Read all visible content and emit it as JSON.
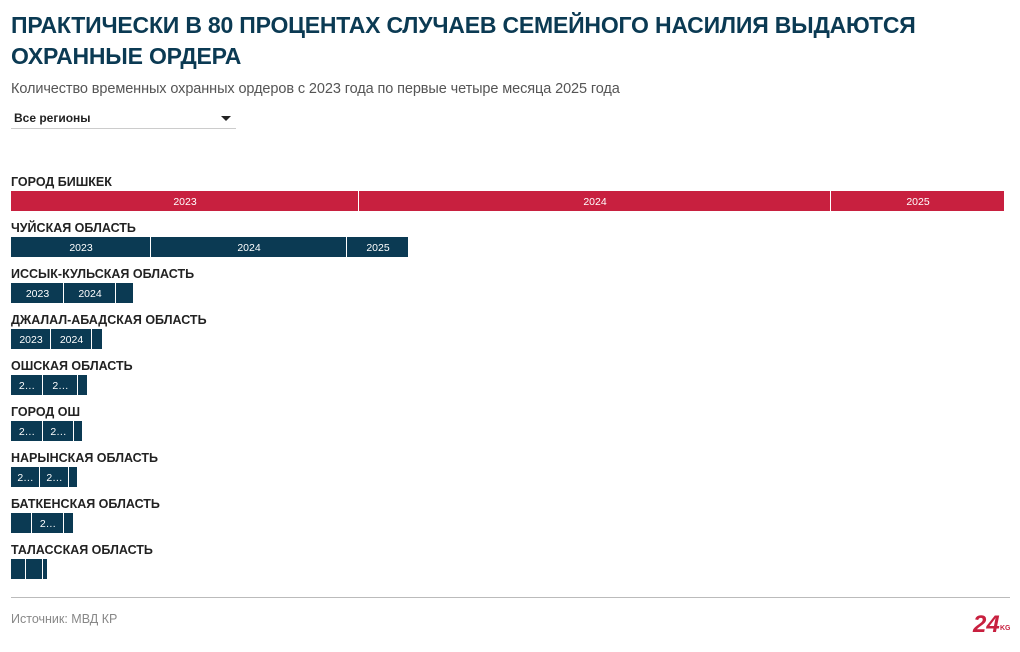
{
  "header": {
    "title": "ПРАКТИЧЕСКИ В 80 ПРОЦЕНТАХ СЛУЧАЕВ СЕМЕЙНОГО НАСИЛИЯ ВЫДАЮТСЯ ОХРАННЫЕ ОРДЕРА",
    "subtitle": "Количество временных охранных ордеров с 2023 года по первые четыре месяца 2025 года"
  },
  "filter": {
    "selected": "Все регионы"
  },
  "footer": {
    "source": "Источник: МВД КР",
    "logo_text": "24",
    "logo_suffix": "KG"
  },
  "colors": {
    "highlight": "#c8203f",
    "bar": "#0b3a53",
    "title": "#0b3a53"
  },
  "chart_data": {
    "type": "bar",
    "stacked": true,
    "orientation": "horizontal",
    "series_names": [
      "2023",
      "2024",
      "2025"
    ],
    "regions": [
      {
        "name": "ГОРОД БИШКЕК",
        "values": [
          3480,
          4720,
          1740
        ],
        "highlight": true
      },
      {
        "name": "ЧУЙСКАЯ ОБЛАСТЬ",
        "values": [
          1400,
          1960,
          620
        ]
      },
      {
        "name": "ИССЫК-КУЛЬСКАЯ ОБЛАСТЬ",
        "values": [
          530,
          520,
          180
        ]
      },
      {
        "name": "ДЖАЛАЛ-АБАДСКАЯ ОБЛАСТЬ",
        "values": [
          400,
          410,
          110
        ]
      },
      {
        "name": "ОШСКАЯ ОБЛАСТЬ",
        "values": [
          320,
          350,
          100
        ]
      },
      {
        "name": "ГОРОД ОШ",
        "values": [
          320,
          310,
          90
        ]
      },
      {
        "name": "НАРЫНСКАЯ ОБЛАСТЬ",
        "values": [
          290,
          290,
          90
        ]
      },
      {
        "name": "БАТКЕНСКАЯ ОБЛАСТЬ",
        "values": [
          210,
          320,
          100
        ]
      },
      {
        "name": "ТАЛАССКАЯ ОБЛАСТЬ",
        "values": [
          150,
          170,
          50
        ]
      }
    ]
  }
}
